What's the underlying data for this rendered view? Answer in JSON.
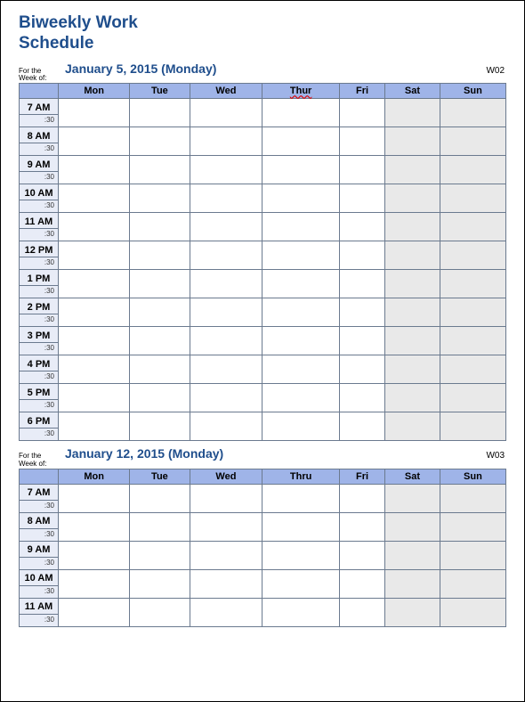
{
  "title_line1": "Biweekly Work",
  "title_line2": "Schedule",
  "week_of_label": "For the Week of:",
  "weeks": [
    {
      "date": "January 5, 2015 (Monday)",
      "weeknum": "W02",
      "days": [
        "Mon",
        "Tue",
        "Wed",
        "Thur",
        "Fri",
        "Sat",
        "Sun"
      ],
      "thur_misspelled": true,
      "times": [
        "7 AM",
        "8 AM",
        "9 AM",
        "10 AM",
        "11 AM",
        "12 PM",
        "1 PM",
        "2 PM",
        "3 PM",
        "4 PM",
        "5 PM",
        "6 PM"
      ],
      "half": ":30"
    },
    {
      "date": "January 12, 2015 (Monday)",
      "weeknum": "W03",
      "days": [
        "Mon",
        "Tue",
        "Wed",
        "Thru",
        "Fri",
        "Sat",
        "Sun"
      ],
      "thur_misspelled": false,
      "times": [
        "7 AM",
        "8 AM",
        "9 AM",
        "10 AM",
        "11 AM"
      ],
      "half": ":30"
    }
  ],
  "colors": {
    "title": "#1f4e8c",
    "header_bg": "#9fb4e8",
    "time_bg": "#e8ecf7",
    "weekend_bg": "#e9e9e9",
    "border": "#6b7a8f"
  },
  "col_widths": {
    "time": 44
  }
}
